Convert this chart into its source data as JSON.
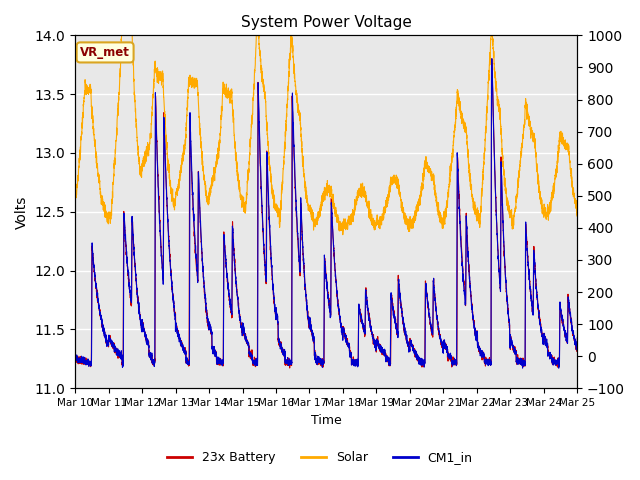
{
  "title": "System Power Voltage",
  "xlabel": "Time",
  "ylabel_left": "Volts",
  "ylim_left": [
    11.0,
    14.0
  ],
  "ylim_right": [
    -100,
    1000
  ],
  "yticks_left": [
    11.0,
    11.5,
    12.0,
    12.5,
    13.0,
    13.5,
    14.0
  ],
  "yticks_right": [
    -100,
    0,
    100,
    200,
    300,
    400,
    500,
    600,
    700,
    800,
    900,
    1000
  ],
  "xtick_labels": [
    "Mar 10",
    "Mar 11",
    "Mar 12",
    "Mar 13",
    "Mar 14",
    "Mar 15",
    "Mar 16",
    "Mar 17",
    "Mar 18",
    "Mar 19",
    "Mar 20",
    "Mar 21",
    "Mar 22",
    "Mar 23",
    "Mar 24",
    "Mar 25"
  ],
  "annotation_text": "VR_met",
  "bg_color": "#e8e8e8",
  "line_battery_color": "#cc0000",
  "line_solar_color": "#ffaa00",
  "line_cm1_color": "#0000cc",
  "legend_labels": [
    "23x Battery",
    "Solar",
    "CM1_in"
  ],
  "n_days": 15,
  "pts_per_day": 300
}
